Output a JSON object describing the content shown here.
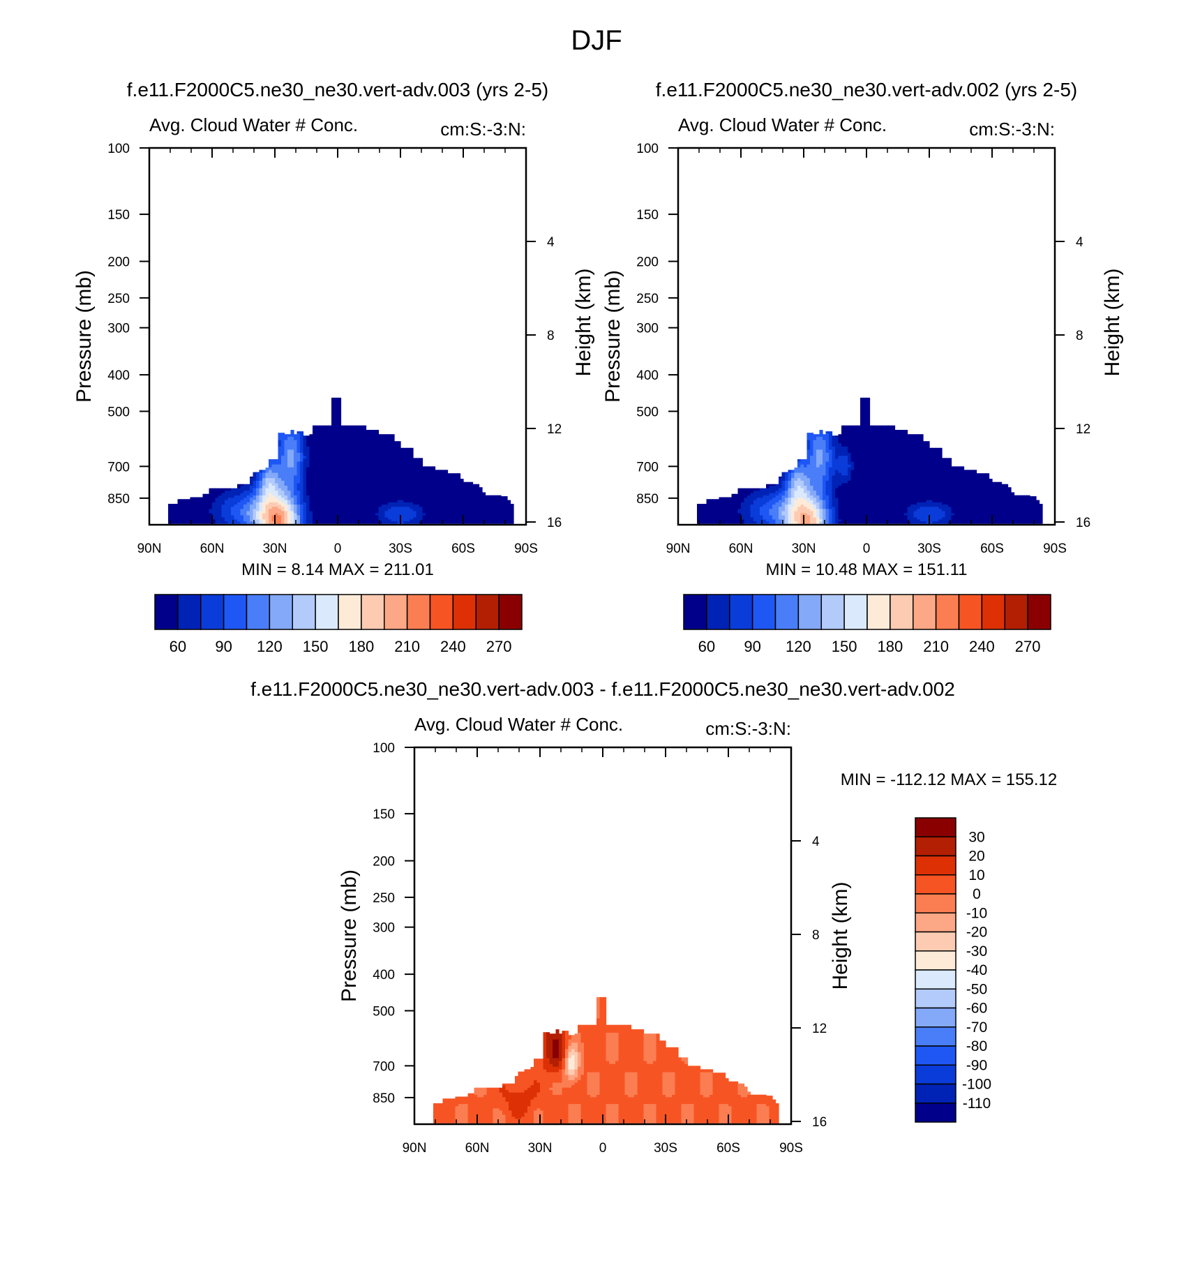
{
  "figure_title": "DJF",
  "chart_data": [
    {
      "type": "heatmap",
      "title": "f.e11.F2000C5.ne30_ne30.vert-adv.003 (yrs 2-5)",
      "left_label": "Avg. Cloud Water # Conc.",
      "right_label": "cm:S:-3:N:",
      "ylabel": "Pressure (mb)",
      "ylabel_right": "Height (km)",
      "x_ticks": [
        "90N",
        "60N",
        "30N",
        "0",
        "30S",
        "60S",
        "90S"
      ],
      "y_ticks": [
        "100",
        "150",
        "200",
        "250",
        "300",
        "400",
        "500",
        "700",
        "850"
      ],
      "y_right_ticks": [
        "16",
        "12",
        "8",
        "4"
      ],
      "ylim": [
        100,
        1000
      ],
      "xlim": [
        90,
        -90
      ],
      "stats": "MIN =   8.14  MAX = 211.01",
      "min": 8.14,
      "max": 211.01,
      "colorbar": {
        "orientation": "horizontal",
        "labels": [
          "60",
          "90",
          "120",
          "150",
          "180",
          "210",
          "240",
          "270"
        ],
        "colors": [
          "#00008a",
          "#0022b5",
          "#0a3cda",
          "#1f57f5",
          "#4a7ef8",
          "#84a9f9",
          "#b3cbfb",
          "#dbe9fc",
          "#fdebd8",
          "#fdcbb2",
          "#fca785",
          "#fb7e52",
          "#f75424",
          "#dd3105",
          "#b21f03",
          "#8a0000"
        ]
      }
    },
    {
      "type": "heatmap",
      "title": "f.e11.F2000C5.ne30_ne30.vert-adv.002 (yrs 2-5)",
      "left_label": "Avg. Cloud Water # Conc.",
      "right_label": "cm:S:-3:N:",
      "ylabel": "Pressure (mb)",
      "ylabel_right": "Height (km)",
      "x_ticks": [
        "90N",
        "60N",
        "30N",
        "0",
        "30S",
        "60S",
        "90S"
      ],
      "y_ticks": [
        "100",
        "150",
        "200",
        "250",
        "300",
        "400",
        "500",
        "700",
        "850"
      ],
      "y_right_ticks": [
        "16",
        "12",
        "8",
        "4"
      ],
      "ylim": [
        100,
        1000
      ],
      "xlim": [
        90,
        -90
      ],
      "stats": "MIN =  10.48  MAX = 151.11",
      "min": 10.48,
      "max": 151.11,
      "colorbar": {
        "orientation": "horizontal",
        "labels": [
          "60",
          "90",
          "120",
          "150",
          "180",
          "210",
          "240",
          "270"
        ],
        "colors": [
          "#00008a",
          "#0022b5",
          "#0a3cda",
          "#1f57f5",
          "#4a7ef8",
          "#84a9f9",
          "#b3cbfb",
          "#dbe9fc",
          "#fdebd8",
          "#fdcbb2",
          "#fca785",
          "#fb7e52",
          "#f75424",
          "#dd3105",
          "#b21f03",
          "#8a0000"
        ]
      }
    },
    {
      "type": "heatmap",
      "title": "f.e11.F2000C5.ne30_ne30.vert-adv.003 - f.e11.F2000C5.ne30_ne30.vert-adv.002",
      "left_label": "Avg. Cloud Water # Conc.",
      "right_label": "cm:S:-3:N:",
      "ylabel": "Pressure (mb)",
      "ylabel_right": "Height (km)",
      "x_ticks": [
        "90N",
        "60N",
        "30N",
        "0",
        "30S",
        "60S",
        "90S"
      ],
      "y_ticks": [
        "100",
        "150",
        "200",
        "250",
        "300",
        "400",
        "500",
        "700",
        "850"
      ],
      "y_right_ticks": [
        "16",
        "12",
        "8",
        "4"
      ],
      "ylim": [
        100,
        1000
      ],
      "xlim": [
        90,
        -90
      ],
      "stats": "MIN = -112.12  MAX = 155.12",
      "min": -112.12,
      "max": 155.12,
      "colorbar": {
        "orientation": "vertical",
        "labels": [
          "30",
          "20",
          "10",
          "0",
          "-10",
          "-20",
          "-30",
          "-40",
          "-50",
          "-60",
          "-70",
          "-80",
          "-90",
          "-100",
          "-110"
        ],
        "colors": [
          "#8a0000",
          "#b21f03",
          "#dd3105",
          "#f75424",
          "#fb7e52",
          "#fca785",
          "#fdcbb2",
          "#fdebd8",
          "#dbe9fc",
          "#b3cbfb",
          "#84a9f9",
          "#4a7ef8",
          "#1f57f5",
          "#0a3cda",
          "#0022b5",
          "#00008a"
        ]
      }
    }
  ]
}
